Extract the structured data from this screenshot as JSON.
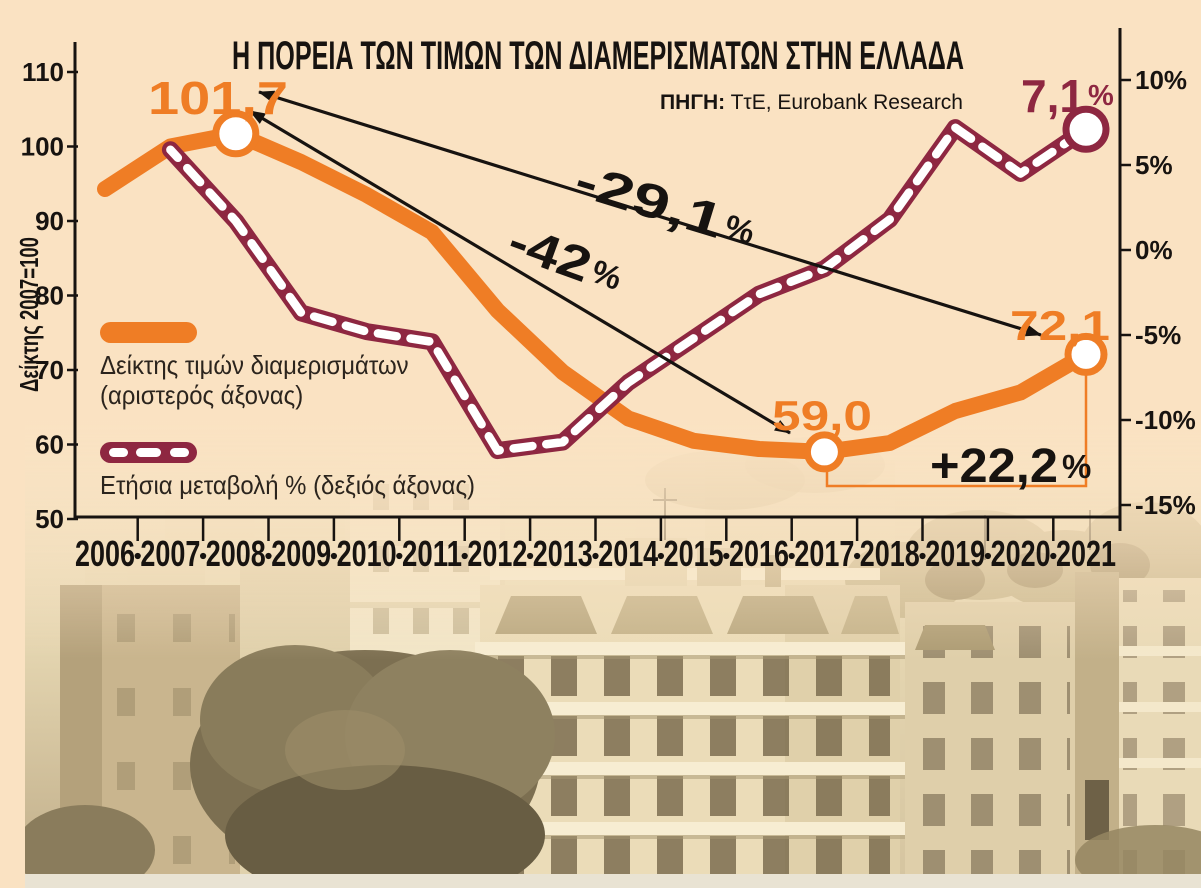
{
  "title": "Η ΠΟΡΕΙΑ ΤΩΝ ΤΙΜΩΝ ΤΩΝ ΔΙΑΜΕΡΙΣΜΑΤΩΝ ΣΤΗΝ ΕΛΛΑΔΑ",
  "source": {
    "label": "ΠΗΓΗ:",
    "text": " ΤτΕ, Eurobank Research"
  },
  "legend": {
    "index": {
      "line1": "Δείκτης τιμών διαμερισμάτων",
      "line2": "(αριστερός άξονας)"
    },
    "change": {
      "line1": "Ετήσια μεταβολή % (δεξιός άξονας)"
    }
  },
  "colors": {
    "background": "#FAE2C2",
    "index": "#EF7D25",
    "change": "#8E2741",
    "ink": "#171310"
  },
  "chart_data": {
    "type": "line",
    "x": [
      "2006",
      "2007",
      "2008",
      "2009",
      "2010",
      "2011",
      "2012",
      "2013",
      "2014",
      "2015",
      "2016",
      "2017",
      "2018",
      "2019",
      "2020",
      "2021"
    ],
    "left_axis": {
      "label": "Δείκτης 2007=100",
      "ticks": [
        "110",
        "100",
        "90",
        "80",
        "70",
        "60",
        "50"
      ],
      "range": [
        50,
        110
      ]
    },
    "right_axis": {
      "ticks": [
        "10%",
        "5%",
        "0%",
        "-5%",
        "-10%",
        "-15%"
      ],
      "range": [
        -15,
        10
      ]
    },
    "series": [
      {
        "name": "Δείκτης τιμών διαμερισμάτων",
        "axis": "left",
        "style": "solid",
        "color": "#EF7D25",
        "values": [
          94.3,
          100,
          101.7,
          97.9,
          93.5,
          88.5,
          78,
          69.7,
          63.5,
          60.5,
          59.4,
          59,
          60.2,
          64.5,
          67,
          72.1
        ]
      },
      {
        "name": "Ετήσια μεταβολή %",
        "axis": "right",
        "style": "dashed",
        "color": "#8E2741",
        "values": [
          null,
          5.9,
          1.7,
          -3.7,
          -4.8,
          -5.4,
          -11.8,
          -11.3,
          -7.8,
          -5.2,
          -2.6,
          -1.1,
          1.8,
          7.2,
          4.5,
          7.1
        ]
      }
    ],
    "point_labels": [
      {
        "series": 0,
        "x": "2008",
        "text": "101,7"
      },
      {
        "series": 0,
        "x": "2017",
        "text": "59,0"
      },
      {
        "series": 0,
        "x": "2021",
        "text": "72,1"
      },
      {
        "series": 1,
        "x": "2021",
        "text": "7,1%"
      }
    ],
    "annotations": [
      {
        "id": "drop-2008-2021",
        "text": "-29,1%"
      },
      {
        "id": "drop-2008-2017",
        "text": "-42%"
      },
      {
        "id": "rise-2017-2021",
        "text": "+22,2%"
      }
    ],
    "legend_position": "inside-left",
    "grid": false
  }
}
